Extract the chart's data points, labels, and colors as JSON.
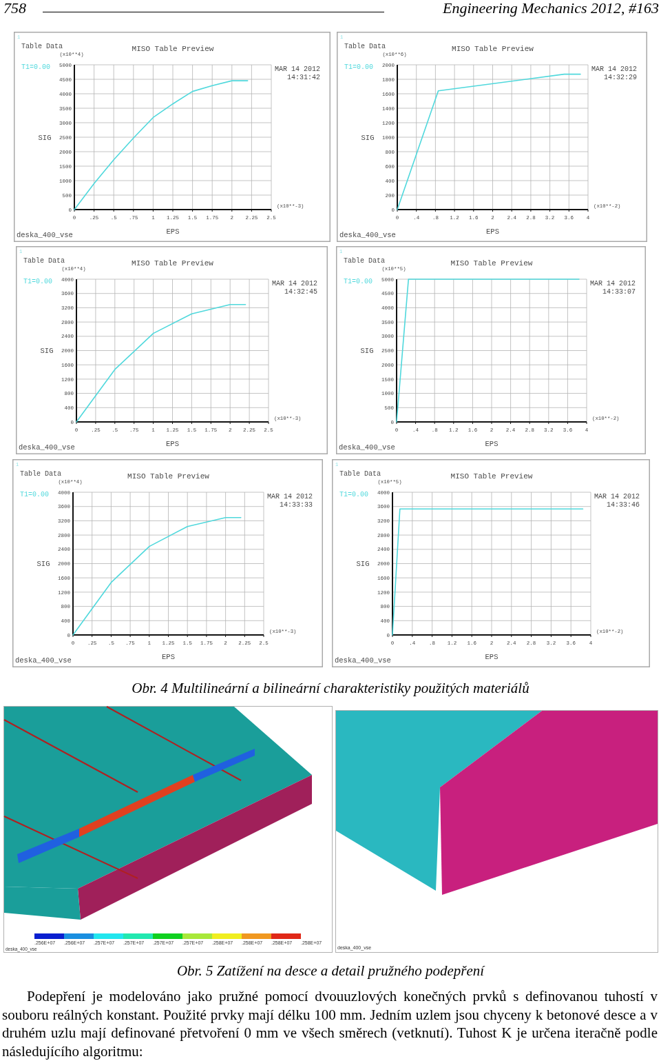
{
  "chart_data": [
    {
      "type": "line",
      "title": "MISO Table Preview",
      "xlabel": "EPS",
      "ylabel": "SIG",
      "x": [
        0,
        0.25,
        0.5,
        0.75,
        1,
        1.25,
        1.5,
        1.75,
        2,
        2.2
      ],
      "series": [
        {
          "name": "T1=0.00",
          "color": "#4fd8dc",
          "values": [
            0,
            900,
            1720,
            2470,
            3180,
            3650,
            4080,
            4280,
            4450,
            4450
          ]
        }
      ],
      "xlim": [
        0,
        2.5
      ],
      "ylim": [
        0,
        5000
      ],
      "xticks": [
        0,
        {
          "value": 0.25,
          "label": ".25"
        },
        {
          "value": 0.5,
          "label": ".5"
        },
        {
          "value": 0.75,
          "label": ".75"
        },
        1,
        1.25,
        1.5,
        1.75,
        2,
        2.25,
        2.5
      ],
      "yticks": [
        0,
        500,
        1000,
        1500,
        2000,
        2500,
        3000,
        3500,
        4000,
        4500,
        5000
      ],
      "grid": true,
      "legend": "top left",
      "annotations": [
        "1",
        "Table Data",
        "(x10**4)",
        "MAR 14 2012",
        "14:31:42",
        "(x10**-3)",
        "deska_400_vse"
      ]
    },
    {
      "type": "line",
      "title": "MISO Table Preview",
      "xlabel": "EPS",
      "ylabel": "SIG",
      "x": [
        0,
        0.86,
        3.5,
        3.84
      ],
      "series": [
        {
          "name": "T1=0.00",
          "color": "#4fd8dc",
          "values": [
            0,
            1640,
            1870,
            1870
          ]
        }
      ],
      "xlim": [
        0,
        4
      ],
      "ylim": [
        0,
        2000
      ],
      "xticks": [
        0,
        {
          "value": 0.4,
          "label": ".4"
        },
        {
          "value": 0.8,
          "label": ".8"
        },
        1.2,
        1.6,
        2,
        2.4,
        2.8,
        3.2,
        3.6,
        4
      ],
      "yticks": [
        0,
        200,
        400,
        600,
        800,
        1000,
        1200,
        1400,
        1600,
        1800,
        2000
      ],
      "grid": true,
      "legend": "top left",
      "annotations": [
        "1",
        "Table Data",
        "(x10**6)",
        "MAR 14 2012",
        "14:32:29",
        "(x10**-2)",
        "deska_400_vse"
      ]
    },
    {
      "type": "line",
      "title": "MISO Table Preview",
      "xlabel": "EPS",
      "ylabel": "SIG",
      "x": [
        0,
        0.5,
        1,
        1.5,
        2,
        2.2
      ],
      "series": [
        {
          "name": "T1=0.00",
          "color": "#4fd8dc",
          "values": [
            0,
            1470,
            2480,
            3030,
            3290,
            3290
          ]
        }
      ],
      "xlim": [
        0,
        2.5
      ],
      "ylim": [
        0,
        4000
      ],
      "xticks": [
        0,
        {
          "value": 0.25,
          "label": ".25"
        },
        {
          "value": 0.5,
          "label": ".5"
        },
        {
          "value": 0.75,
          "label": ".75"
        },
        1,
        1.25,
        1.5,
        1.75,
        2,
        2.25,
        2.5
      ],
      "yticks": [
        0,
        400,
        800,
        1200,
        1600,
        2000,
        2400,
        2800,
        3200,
        3600,
        4000
      ],
      "grid": true,
      "legend": "top left",
      "annotations": [
        "1",
        "Table Data",
        "(x10**4)",
        "MAR 14 2012",
        "14:32:45",
        "(x10**-3)",
        "deska_400_vse"
      ]
    },
    {
      "type": "line",
      "title": "MISO Table Preview",
      "xlabel": "EPS",
      "ylabel": "SIG",
      "x": [
        0,
        0.25,
        3.84
      ],
      "series": [
        {
          "name": "T1=0.00",
          "color": "#4fd8dc",
          "values": [
            0,
            5000,
            5000
          ]
        }
      ],
      "xlim": [
        0,
        4
      ],
      "ylim": [
        0,
        5000
      ],
      "xticks": [
        0,
        {
          "value": 0.4,
          "label": ".4"
        },
        {
          "value": 0.8,
          "label": ".8"
        },
        1.2,
        1.6,
        2,
        2.4,
        2.8,
        3.2,
        3.6,
        4
      ],
      "yticks": [
        0,
        500,
        1000,
        1500,
        2000,
        2500,
        3000,
        3500,
        4000,
        4500,
        5000
      ],
      "grid": true,
      "legend": "top left",
      "annotations": [
        "1",
        "Table Data",
        "(x10**5)",
        "MAR 14 2012",
        "14:33:07",
        "(x10**-2)",
        "deska_400_vse"
      ]
    },
    {
      "type": "line",
      "title": "MISO Table Preview",
      "xlabel": "EPS",
      "ylabel": "SIG",
      "x": [
        0,
        0.5,
        1,
        1.5,
        2,
        2.2
      ],
      "series": [
        {
          "name": "T1=0.00",
          "color": "#4fd8dc",
          "values": [
            0,
            1470,
            2480,
            3040,
            3290,
            3290
          ]
        }
      ],
      "xlim": [
        0,
        2.5
      ],
      "ylim": [
        0,
        4000
      ],
      "xticks": [
        0,
        {
          "value": 0.25,
          "label": ".25"
        },
        {
          "value": 0.5,
          "label": ".5"
        },
        {
          "value": 0.75,
          "label": ".75"
        },
        1,
        1.25,
        1.5,
        1.75,
        2,
        2.25,
        2.5
      ],
      "yticks": [
        0,
        400,
        800,
        1200,
        1600,
        2000,
        2400,
        2800,
        3200,
        3600,
        4000
      ],
      "grid": true,
      "legend": "top left",
      "annotations": [
        "1",
        "Table Data",
        "(x10**4)",
        "MAR 14 2012",
        "14:33:33",
        "(x10**-3)",
        "deska_400_vse"
      ]
    },
    {
      "type": "line",
      "title": "MISO Table Preview",
      "xlabel": "EPS",
      "ylabel": "SIG",
      "x": [
        0,
        0.15,
        3.84
      ],
      "series": [
        {
          "name": "T1=0.00",
          "color": "#4fd8dc",
          "values": [
            0,
            3530,
            3530
          ]
        }
      ],
      "xlim": [
        0,
        4
      ],
      "ylim": [
        0,
        4000
      ],
      "xticks": [
        0,
        {
          "value": 0.4,
          "label": ".4"
        },
        {
          "value": 0.8,
          "label": ".8"
        },
        1.2,
        1.6,
        2,
        2.4,
        2.8,
        3.2,
        3.6,
        4
      ],
      "yticks": [
        0,
        400,
        800,
        1200,
        1600,
        2000,
        2400,
        2800,
        3200,
        3600,
        4000
      ],
      "grid": true,
      "legend": "top left",
      "annotations": [
        "1",
        "Table Data",
        "(x10**5)",
        "MAR 14 2012",
        "14:33:46",
        "(x10**-2)",
        "deska_400_vse"
      ]
    },
    {
      "type": "other",
      "annotations": [
        "758",
        "Engineering Mechanics 2012, #163",
        "Obr. 4 Multilineární a bilineární charakteristiky použitých materiálů",
        ".256E+07",
        ".256E+07",
        ".257E+07",
        ".257E+07",
        ".257E+07",
        ".257E+07",
        ".258E+07",
        ".258E+07",
        ".258E+07",
        ".258E+07",
        "deska_400_vse",
        "deska_400_vse",
        "Obr. 5 Zatížení na desce a detail pružného podepření",
        "Podepření je modelováno jako pružné pomocí dvouuzlových konečných prvků s definovanou tuhostí v souboru reálných konstant. Použité prvky mají délku 100 mm. Jedním uzlem jsou chyceny k betonové desce a v druhém uzlu mají definované přetvoření 0 mm ve všech směrech (vetknutí). Tuhost K je určena iteračně podle následujícího algoritmu:"
      ]
    }
  ]
}
